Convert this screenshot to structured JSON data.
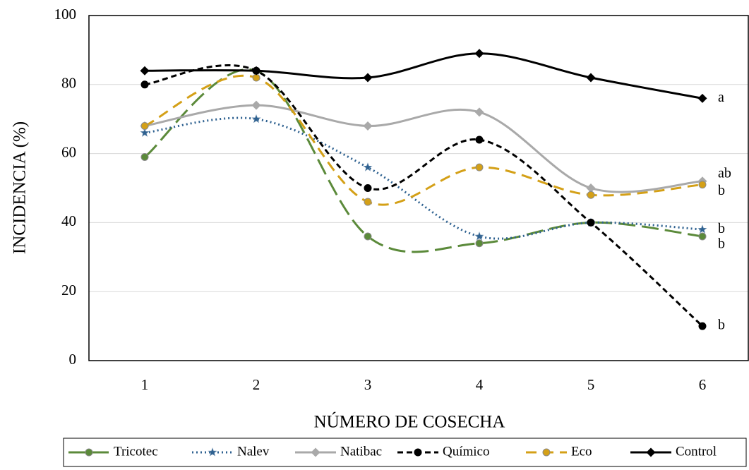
{
  "chart_data": {
    "type": "line",
    "x_label": "NÚMERO DE COSECHA",
    "y_label": "INCIDENCIA (%)",
    "categories": [
      "1",
      "2",
      "3",
      "4",
      "5",
      "6"
    ],
    "ylim": [
      0,
      100
    ],
    "yticks": [
      0,
      20,
      40,
      60,
      80,
      100
    ],
    "grid": true,
    "smooth": true,
    "legend": "bottom",
    "series": [
      {
        "name": "Tricotec",
        "color": "#5b8a3a",
        "dash": "long-dash",
        "marker": "circle",
        "values": [
          59,
          84,
          36,
          34,
          40,
          36
        ],
        "annotation": "b"
      },
      {
        "name": "Nalev",
        "color": "#2e6190",
        "dash": "dot",
        "marker": "star",
        "values": [
          66,
          70,
          56,
          36,
          40,
          38
        ],
        "annotation": "b"
      },
      {
        "name": "Natibac",
        "color": "#a9a9a9",
        "dash": "solid",
        "marker": "diamond",
        "values": [
          68,
          74,
          68,
          72,
          50,
          52
        ],
        "annotation": "ab"
      },
      {
        "name": "Químico",
        "color": "#000000",
        "dash": "dash",
        "marker": "circle",
        "values": [
          80,
          84,
          50,
          64,
          40,
          10
        ],
        "annotation": "b"
      },
      {
        "name": "Eco",
        "color": "#d4a017",
        "dash": "medium-dash",
        "marker": "circle",
        "values": [
          68,
          82,
          46,
          56,
          48,
          51
        ],
        "annotation": "b"
      },
      {
        "name": "Control",
        "color": "#000000",
        "dash": "solid",
        "marker": "diamond",
        "values": [
          84,
          84,
          82,
          89,
          82,
          76
        ],
        "annotation": "a"
      }
    ]
  }
}
